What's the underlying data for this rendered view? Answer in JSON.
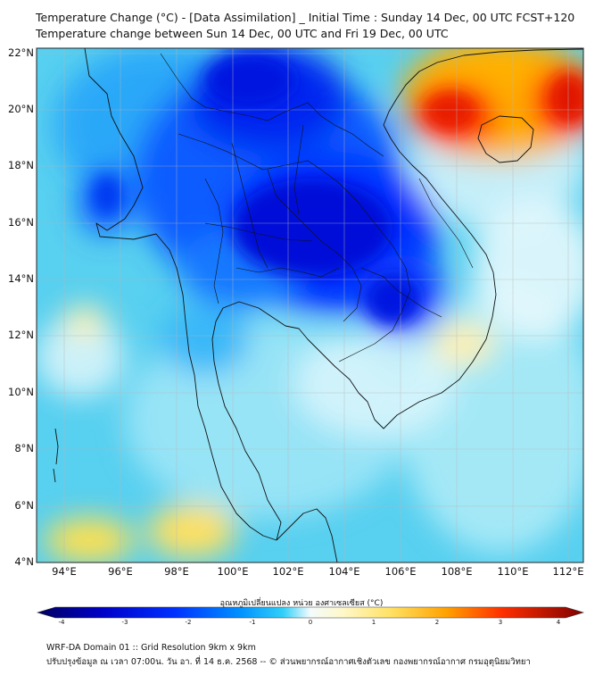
{
  "titles": {
    "line1": "Temperature Change (°C) - [Data Assimilation] _ Initial Time : Sunday 14 Dec, 00 UTC FCST+120",
    "line2": "Temperature change between Sun 14 Dec, 00 UTC and Fri 19 Dec, 00 UTC"
  },
  "map": {
    "lat_ticks": [
      "22°N",
      "20°N",
      "18°N",
      "16°N",
      "14°N",
      "12°N",
      "10°N",
      "8°N",
      "6°N",
      "4°N"
    ],
    "lon_ticks": [
      "94°E",
      "96°E",
      "98°E",
      "100°E",
      "102°E",
      "104°E",
      "106°E",
      "108°E",
      "110°E",
      "112°E"
    ],
    "extent": {
      "lon_min": 93.0,
      "lon_max": 112.6,
      "lat_min": 4.0,
      "lat_max": 22.2
    }
  },
  "colorbar": {
    "title": "อุณหภูมิเปลี่ยนแปลง หน่วย องศาเซลเซียส (°C)",
    "ticks": [
      "-4",
      "-3",
      "-2",
      "-1",
      "0",
      "1",
      "2",
      "3",
      "4"
    ],
    "min": -4,
    "max": 4
  },
  "footer": {
    "line1": "WRF-DA Domain 01 :: Grid Resolution 9km x 9km",
    "line2": "ปรับปรุงข้อมูล ณ เวลา 07:00น. วัน อา. ที่ 14 ธ.ค. 2568 -- © ส่วนพยากรณ์อากาศเชิงตัวเลข กองพยากรณ์อากาศ กรมอุตุนิยมวิทยา"
  }
}
